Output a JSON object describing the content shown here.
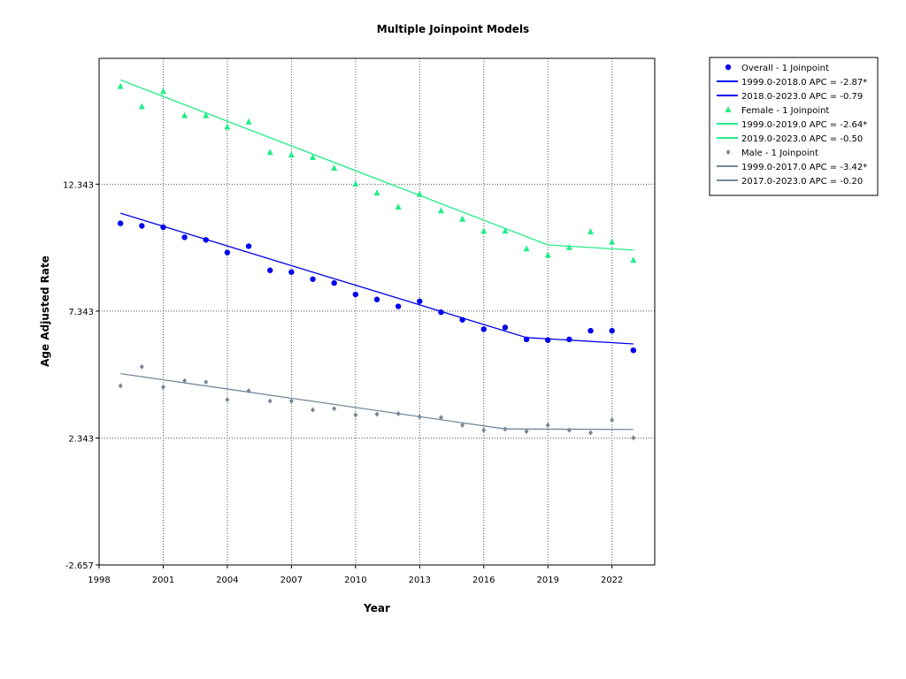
{
  "chart_data": {
    "type": "line",
    "title": "Multiple Joinpoint Models",
    "xlabel": "Year",
    "ylabel": "Age Adjusted Rate",
    "xlim": [
      1998,
      2024
    ],
    "ylim": [
      -2.657,
      17.3
    ],
    "x_ticks": [
      1998,
      2001,
      2004,
      2007,
      2010,
      2013,
      2016,
      2019,
      2022
    ],
    "y_ticks": [
      -2.657,
      2.343,
      7.343,
      12.343
    ],
    "y_tick_labels": [
      "-2.657",
      "2.343",
      "7.343",
      "12.343"
    ],
    "grid": true,
    "legend_position": "outside-right",
    "x": [
      1999,
      2000,
      2001,
      2002,
      2003,
      2004,
      2005,
      2006,
      2007,
      2008,
      2009,
      2010,
      2011,
      2012,
      2013,
      2014,
      2015,
      2016,
      2017,
      2018,
      2019,
      2020,
      2021,
      2022,
      2023
    ],
    "series": [
      {
        "name": "Overall - 1 Joinpoint",
        "color": "#0000ee",
        "marker": "circle",
        "values": [
          10.8,
          10.7,
          10.65,
          10.25,
          10.15,
          9.65,
          9.9,
          8.95,
          8.88,
          8.6,
          8.45,
          8.0,
          7.8,
          7.53,
          7.73,
          7.3,
          7.0,
          6.63,
          6.7,
          6.23,
          6.2,
          6.23,
          6.57,
          6.57,
          5.8
        ],
        "fit": [
          {
            "label": "1999.0-2018.0 APC  =  -2.87*",
            "from": [
              1999,
              11.2
            ],
            "to": [
              2018,
              6.3
            ]
          },
          {
            "label": "2018.0-2023.0 APC  =  -0.79",
            "from": [
              2018,
              6.3
            ],
            "to": [
              2023,
              6.05
            ]
          }
        ]
      },
      {
        "name": "Female - 1 Joinpoint",
        "color": "#22ee88",
        "marker": "triangle",
        "values": [
          16.2,
          15.4,
          16.0,
          15.05,
          15.05,
          14.6,
          14.8,
          13.6,
          13.5,
          13.4,
          12.98,
          12.35,
          12.0,
          11.45,
          11.95,
          11.3,
          10.97,
          10.5,
          10.5,
          9.8,
          9.55,
          9.85,
          10.47,
          10.07,
          9.35
        ],
        "fit": [
          {
            "label": "1999.0-2019.0 APC  =  -2.64*",
            "from": [
              1999,
              16.45
            ],
            "to": [
              2019,
              9.95
            ]
          },
          {
            "label": "2019.0-2023.0 APC  =  -0.50",
            "from": [
              2019,
              9.95
            ],
            "to": [
              2023,
              9.75
            ]
          }
        ]
      },
      {
        "name": "Male - 1 Joinpoint",
        "color": "#778899",
        "marker": "diamond",
        "values": [
          4.4,
          5.15,
          4.35,
          4.6,
          4.55,
          3.85,
          4.2,
          3.8,
          3.8,
          3.45,
          3.5,
          3.25,
          3.28,
          3.3,
          3.18,
          3.15,
          2.85,
          2.65,
          2.7,
          2.6,
          2.85,
          2.65,
          2.55,
          3.05,
          2.35
        ],
        "fit": [
          {
            "label": "1999.0-2017.0 APC  =  -3.42*",
            "from": [
              1999,
              4.88
            ],
            "to": [
              2017,
              2.7
            ]
          },
          {
            "label": "2017.0-2023.0 APC  =  -0.20",
            "from": [
              2017,
              2.7
            ],
            "to": [
              2023,
              2.68
            ]
          }
        ]
      }
    ]
  }
}
